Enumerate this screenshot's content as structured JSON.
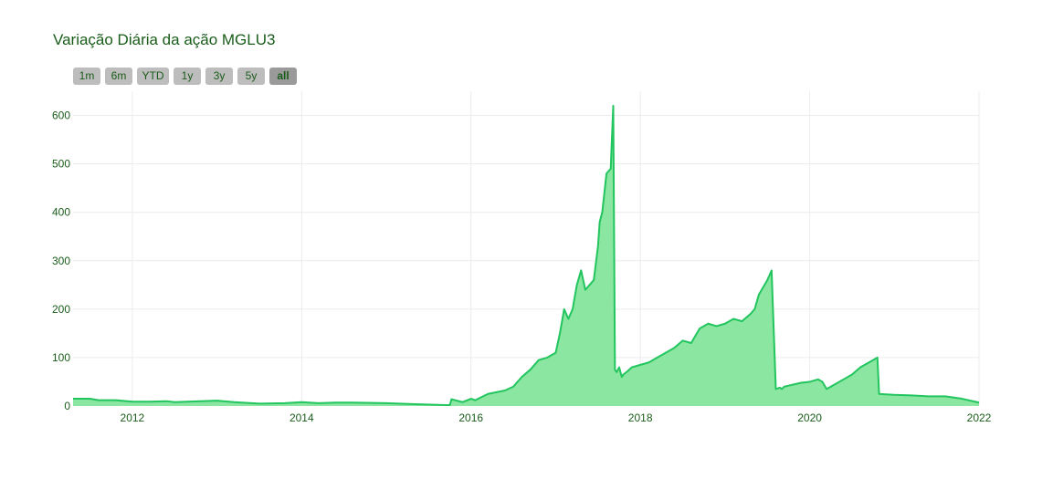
{
  "chart_data": {
    "type": "area",
    "title": "Variação Diária da ação MGLU3",
    "xlabel": "",
    "ylabel": "",
    "xlim": [
      2011.3,
      2022.0
    ],
    "ylim": [
      0,
      650
    ],
    "x_ticks": [
      2012,
      2014,
      2016,
      2018,
      2020,
      2022
    ],
    "x_tick_labels": [
      "2012",
      "2014",
      "2016",
      "2018",
      "2020",
      "2022"
    ],
    "y_ticks": [
      0,
      100,
      200,
      300,
      400,
      500,
      600
    ],
    "y_tick_labels": [
      "0",
      "100",
      "200",
      "300",
      "400",
      "500",
      "600"
    ],
    "grid": true,
    "line_color": "#22c55e",
    "fill_color": "#8ae6a0",
    "series": [
      {
        "x": [
          2011.3,
          2011.5,
          2011.6,
          2011.8,
          2012.0,
          2012.2,
          2012.4,
          2012.5,
          2012.8,
          2013.0,
          2013.2,
          2013.5,
          2013.8,
          2014.0,
          2014.2,
          2014.4,
          2014.6,
          2015.0,
          2015.3,
          2015.7,
          2015.75,
          2015.77,
          2015.9,
          2016.0,
          2016.05,
          2016.2,
          2016.4,
          2016.5,
          2016.6,
          2016.7,
          2016.8,
          2016.9,
          2017.0,
          2017.05,
          2017.1,
          2017.15,
          2017.2,
          2017.25,
          2017.3,
          2017.35,
          2017.4,
          2017.45,
          2017.5,
          2017.52,
          2017.55,
          2017.6,
          2017.65,
          2017.68,
          2017.7,
          2017.72,
          2017.75,
          2017.78,
          2017.8,
          2017.85,
          2017.9,
          2018.0,
          2018.1,
          2018.2,
          2018.3,
          2018.4,
          2018.5,
          2018.6,
          2018.7,
          2018.8,
          2018.9,
          2019.0,
          2019.1,
          2019.2,
          2019.3,
          2019.35,
          2019.4,
          2019.5,
          2019.55,
          2019.6,
          2019.65,
          2019.67,
          2019.7,
          2019.75,
          2019.8,
          2019.9,
          2020.0,
          2020.1,
          2020.15,
          2020.2,
          2020.3,
          2020.4,
          2020.5,
          2020.6,
          2020.7,
          2020.75,
          2020.8,
          2020.82,
          2020.9,
          2021.0,
          2021.2,
          2021.4,
          2021.6,
          2021.8,
          2022.0
        ],
        "y": [
          15,
          15,
          12,
          12,
          9,
          9,
          10,
          8,
          10,
          11,
          8,
          5,
          6,
          8,
          6,
          7,
          7,
          6,
          4,
          2,
          2,
          14,
          8,
          15,
          12,
          25,
          32,
          40,
          60,
          75,
          95,
          100,
          110,
          150,
          200,
          180,
          200,
          250,
          280,
          240,
          250,
          260,
          330,
          380,
          400,
          480,
          490,
          620,
          75,
          70,
          80,
          60,
          65,
          72,
          80,
          85,
          90,
          100,
          110,
          120,
          135,
          130,
          160,
          170,
          165,
          170,
          180,
          175,
          190,
          200,
          230,
          260,
          280,
          35,
          38,
          35,
          40,
          42,
          44,
          48,
          50,
          55,
          50,
          35,
          45,
          55,
          65,
          80,
          90,
          95,
          100,
          25,
          24,
          23,
          22,
          20,
          20,
          15,
          7
        ]
      }
    ]
  },
  "range_selector": {
    "buttons": [
      {
        "label": "1m"
      },
      {
        "label": "6m"
      },
      {
        "label": "YTD"
      },
      {
        "label": "1y"
      },
      {
        "label": "3y"
      },
      {
        "label": "5y"
      },
      {
        "label": "all",
        "active": true
      }
    ]
  }
}
